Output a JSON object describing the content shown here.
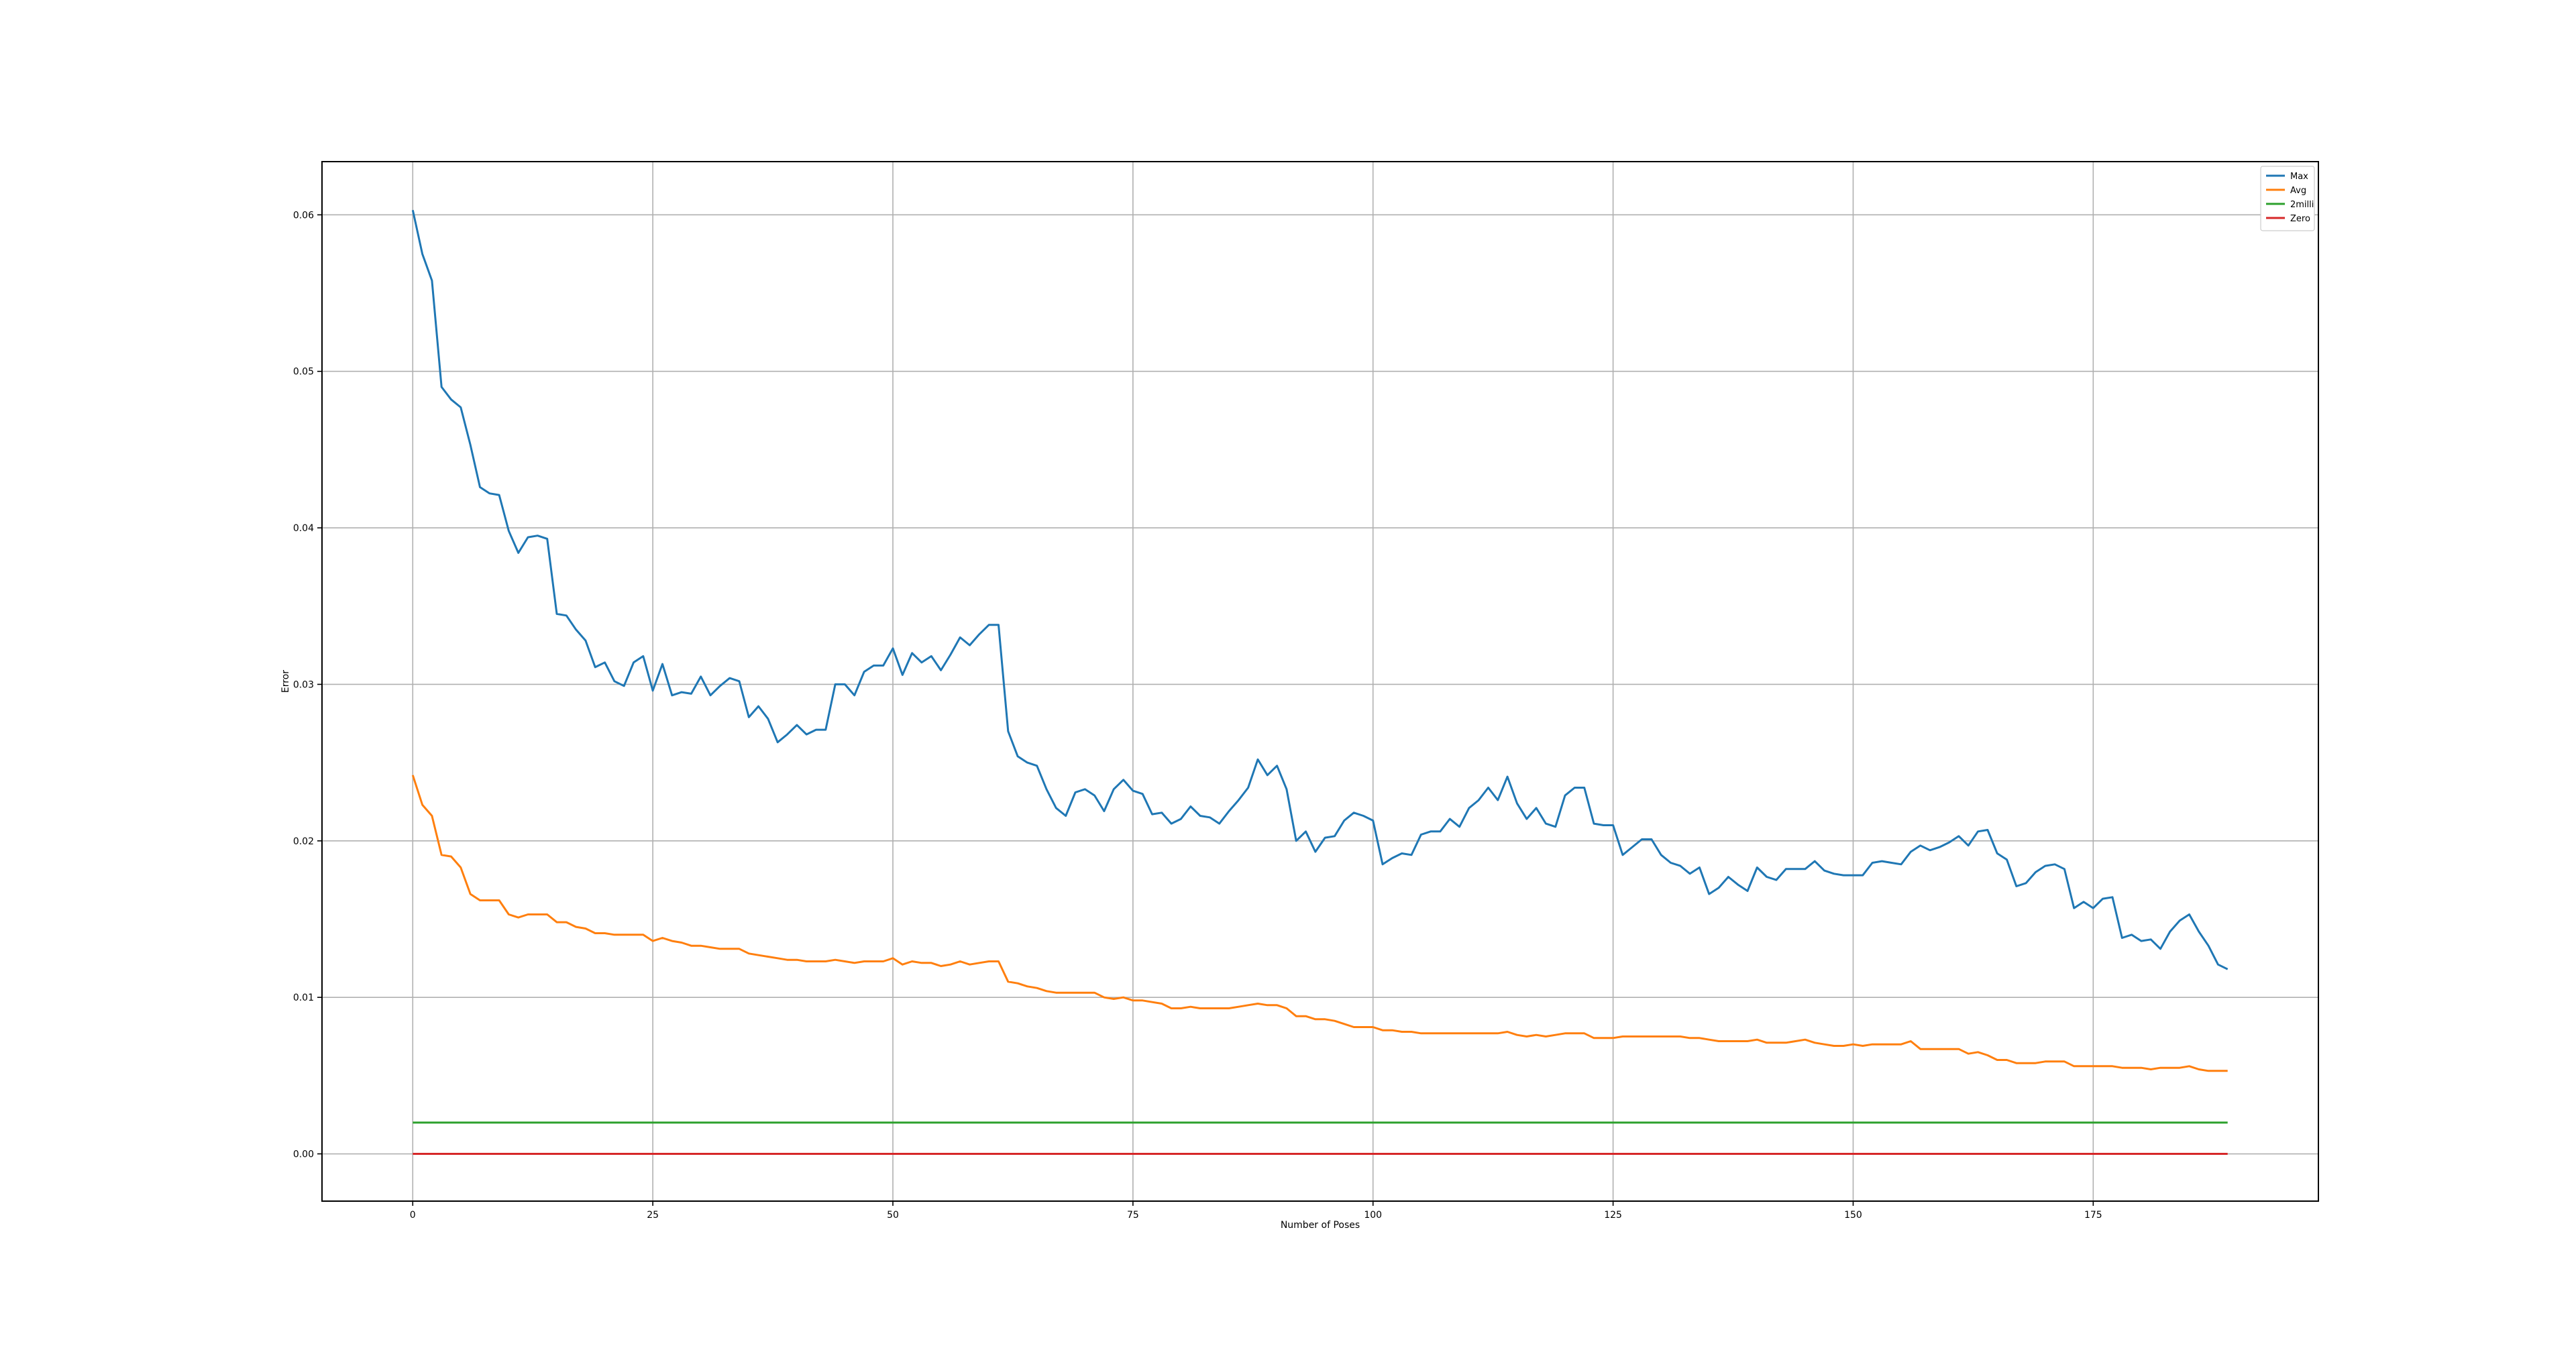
{
  "chart_data": {
    "type": "line",
    "title": "",
    "xlabel": "Number of Poses",
    "ylabel": "Error",
    "xlim": [
      -9.45,
      198.45
    ],
    "ylim": [
      -0.00302,
      0.0634
    ],
    "xticks": [
      0,
      25,
      50,
      75,
      100,
      125,
      150,
      175
    ],
    "yticks": [
      0.0,
      0.01,
      0.02,
      0.03,
      0.04,
      0.05,
      0.06
    ],
    "xtick_labels": [
      "0",
      "25",
      "50",
      "75",
      "100",
      "125",
      "150",
      "175"
    ],
    "ytick_labels": [
      "0.00",
      "0.01",
      "0.02",
      "0.03",
      "0.04",
      "0.05",
      "0.06"
    ],
    "grid": true,
    "legend_position": "top-right",
    "series": [
      {
        "name": "Max",
        "color": "#1f77b4",
        "values": [
          0.0603,
          0.0575,
          0.0558,
          0.049,
          0.0482,
          0.0477,
          0.0453,
          0.0426,
          0.0422,
          0.0421,
          0.0398,
          0.0384,
          0.0394,
          0.0395,
          0.0393,
          0.0345,
          0.0344,
          0.0335,
          0.0328,
          0.0311,
          0.0314,
          0.0302,
          0.0299,
          0.0314,
          0.0318,
          0.0296,
          0.0313,
          0.0293,
          0.0295,
          0.0294,
          0.0305,
          0.0293,
          0.0299,
          0.0304,
          0.0302,
          0.0279,
          0.0286,
          0.0278,
          0.0263,
          0.0268,
          0.0274,
          0.0268,
          0.0271,
          0.0271,
          0.03,
          0.03,
          0.0293,
          0.0308,
          0.0312,
          0.0312,
          0.0323,
          0.0306,
          0.032,
          0.0314,
          0.0318,
          0.0309,
          0.0319,
          0.033,
          0.0325,
          0.0332,
          0.0338,
          0.0338,
          0.027,
          0.0254,
          0.025,
          0.0248,
          0.0233,
          0.0221,
          0.0216,
          0.0231,
          0.0233,
          0.0229,
          0.0219,
          0.0233,
          0.0239,
          0.0232,
          0.023,
          0.0217,
          0.0218,
          0.0211,
          0.0214,
          0.0222,
          0.0216,
          0.0215,
          0.0211,
          0.0219,
          0.0226,
          0.0234,
          0.0252,
          0.0242,
          0.0248,
          0.0233,
          0.02,
          0.0206,
          0.0193,
          0.0202,
          0.0203,
          0.0213,
          0.0218,
          0.0216,
          0.0213,
          0.0185,
          0.0189,
          0.0192,
          0.0191,
          0.0204,
          0.0206,
          0.0206,
          0.0214,
          0.0209,
          0.0221,
          0.0226,
          0.0234,
          0.0226,
          0.0241,
          0.0224,
          0.0214,
          0.0221,
          0.0211,
          0.0209,
          0.0229,
          0.0234,
          0.0234,
          0.0211,
          0.021,
          0.021,
          0.0191,
          0.0196,
          0.0201,
          0.0201,
          0.0191,
          0.0186,
          0.0184,
          0.0179,
          0.0183,
          0.0166,
          0.017,
          0.0177,
          0.0172,
          0.0168,
          0.0183,
          0.0177,
          0.0175,
          0.0182,
          0.0182,
          0.0182,
          0.0187,
          0.0181,
          0.0179,
          0.0178,
          0.0178,
          0.0178,
          0.0186,
          0.0187,
          0.0186,
          0.0185,
          0.0193,
          0.0197,
          0.0194,
          0.0196,
          0.0199,
          0.0203,
          0.0197,
          0.0206,
          0.0207,
          0.0192,
          0.0188,
          0.0171,
          0.0173,
          0.018,
          0.0184,
          0.0185,
          0.0182,
          0.0157,
          0.0161,
          0.0157,
          0.0163,
          0.0164,
          0.0138,
          0.014,
          0.0136,
          0.0137,
          0.0131,
          0.0142,
          0.0149,
          0.0153,
          0.0142,
          0.0133,
          0.0121,
          0.0118
        ]
      },
      {
        "name": "Avg",
        "color": "#ff7f0e",
        "values": [
          0.0242,
          0.0223,
          0.0216,
          0.0191,
          0.019,
          0.0183,
          0.0166,
          0.0162,
          0.0162,
          0.0162,
          0.0153,
          0.0151,
          0.0153,
          0.0153,
          0.0153,
          0.0148,
          0.0148,
          0.0145,
          0.0144,
          0.0141,
          0.0141,
          0.014,
          0.014,
          0.014,
          0.014,
          0.0136,
          0.0138,
          0.0136,
          0.0135,
          0.0133,
          0.0133,
          0.0132,
          0.0131,
          0.0131,
          0.0131,
          0.0128,
          0.0127,
          0.0126,
          0.0125,
          0.0124,
          0.0124,
          0.0123,
          0.0123,
          0.0123,
          0.0124,
          0.0123,
          0.0122,
          0.0123,
          0.0123,
          0.0123,
          0.0125,
          0.0121,
          0.0123,
          0.0122,
          0.0122,
          0.012,
          0.0121,
          0.0123,
          0.0121,
          0.0122,
          0.0123,
          0.0123,
          0.011,
          0.0109,
          0.0107,
          0.0106,
          0.0104,
          0.0103,
          0.0103,
          0.0103,
          0.0103,
          0.0103,
          0.01,
          0.0099,
          0.01,
          0.0098,
          0.0098,
          0.0097,
          0.0096,
          0.0093,
          0.0093,
          0.0094,
          0.0093,
          0.0093,
          0.0093,
          0.0093,
          0.0094,
          0.0095,
          0.0096,
          0.0095,
          0.0095,
          0.0093,
          0.0088,
          0.0088,
          0.0086,
          0.0086,
          0.0085,
          0.0083,
          0.0081,
          0.0081,
          0.0081,
          0.0079,
          0.0079,
          0.0078,
          0.0078,
          0.0077,
          0.0077,
          0.0077,
          0.0077,
          0.0077,
          0.0077,
          0.0077,
          0.0077,
          0.0077,
          0.0078,
          0.0076,
          0.0075,
          0.0076,
          0.0075,
          0.0076,
          0.0077,
          0.0077,
          0.0077,
          0.0074,
          0.0074,
          0.0074,
          0.0075,
          0.0075,
          0.0075,
          0.0075,
          0.0075,
          0.0075,
          0.0075,
          0.0074,
          0.0074,
          0.0073,
          0.0072,
          0.0072,
          0.0072,
          0.0072,
          0.0073,
          0.0071,
          0.0071,
          0.0071,
          0.0072,
          0.0073,
          0.0071,
          0.007,
          0.0069,
          0.0069,
          0.007,
          0.0069,
          0.007,
          0.007,
          0.007,
          0.007,
          0.0072,
          0.0067,
          0.0067,
          0.0067,
          0.0067,
          0.0067,
          0.0064,
          0.0065,
          0.0063,
          0.006,
          0.006,
          0.0058,
          0.0058,
          0.0058,
          0.0059,
          0.0059,
          0.0059,
          0.0056,
          0.0056,
          0.0056,
          0.0056,
          0.0056,
          0.0055,
          0.0055,
          0.0055,
          0.0054,
          0.0055,
          0.0055,
          0.0055,
          0.0056,
          0.0054,
          0.0053,
          0.0053,
          0.0053
        ]
      },
      {
        "name": "2milli",
        "color": "#2ca02c",
        "constant": 0.002,
        "x_range": [
          0,
          189
        ]
      },
      {
        "name": "Zero",
        "color": "#d62728",
        "constant": 0.0,
        "x_range": [
          0,
          189
        ]
      }
    ]
  }
}
